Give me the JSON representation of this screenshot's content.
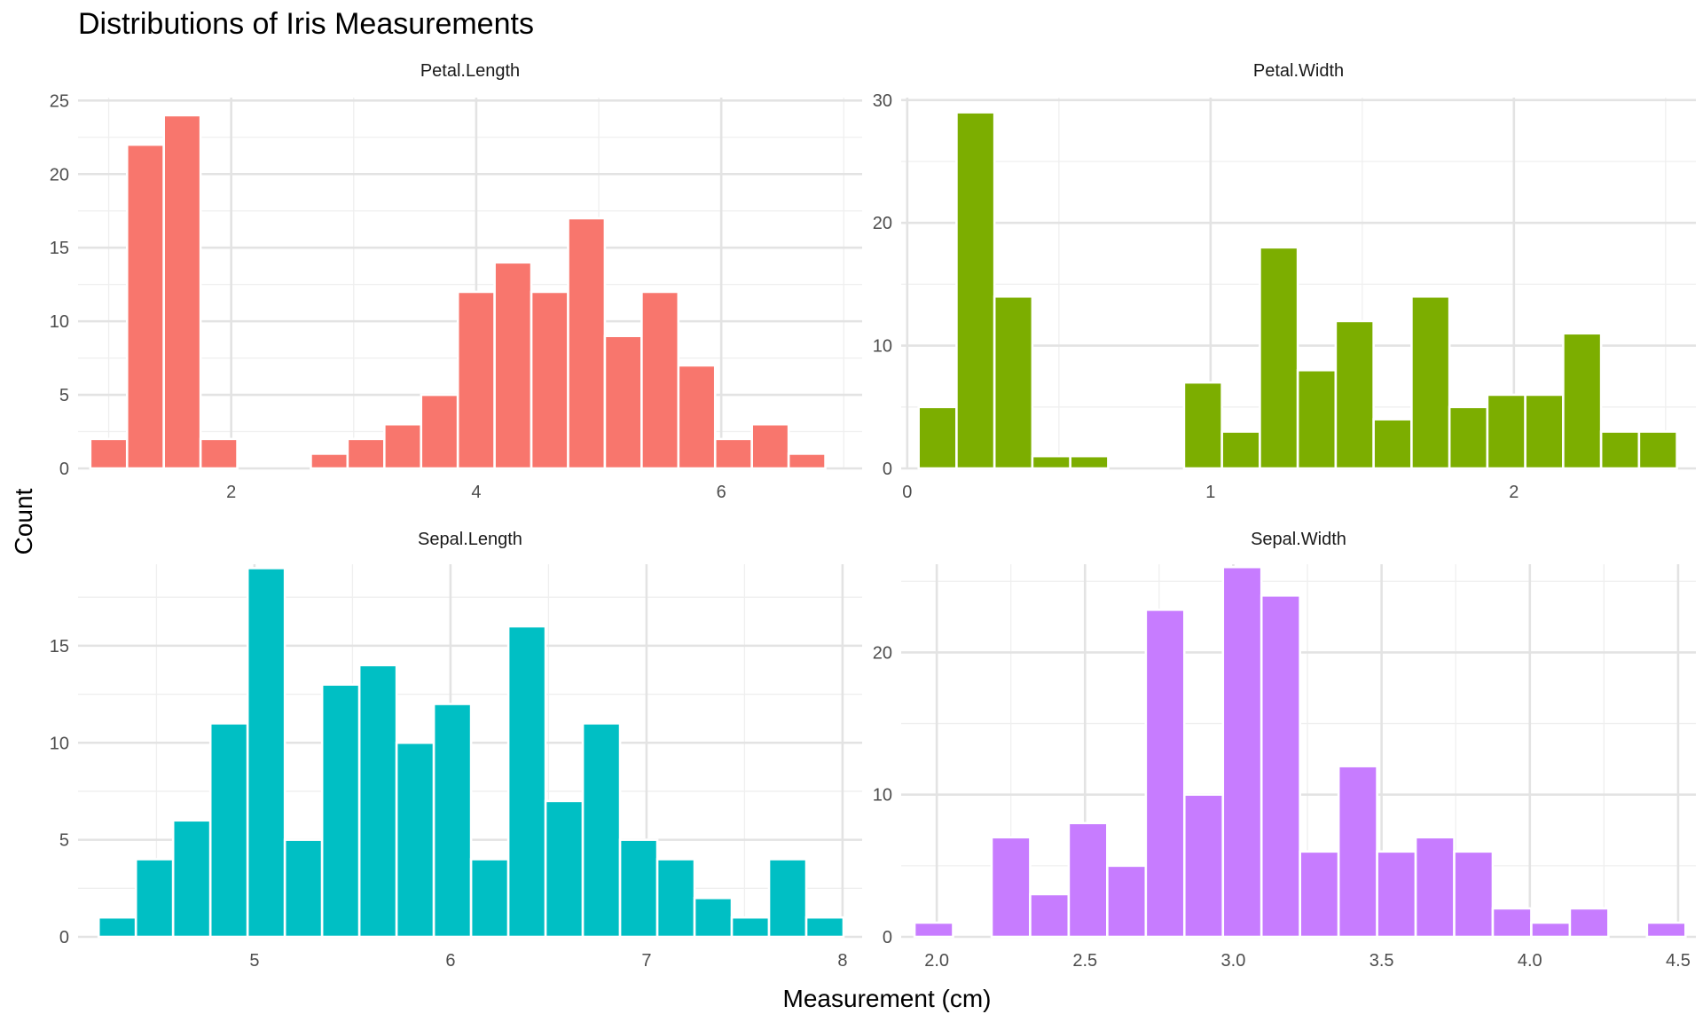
{
  "chart_data": {
    "title": "Distributions of Iris Measurements",
    "xlabel": "Measurement (cm)",
    "ylabel": "Count",
    "type": "bar",
    "facets": [
      {
        "name": "Petal.Length",
        "label": "Petal.Length",
        "color": "#F8766D",
        "bin_width": 0.3,
        "first_bin_center": 1.0,
        "values": [
          2,
          22,
          24,
          2,
          0,
          0,
          1,
          2,
          3,
          5,
          12,
          14,
          12,
          17,
          9,
          12,
          7,
          2,
          3,
          1
        ],
        "xlim": [
          0.75,
          7.15
        ],
        "ylim": [
          0,
          25.2
        ],
        "x_ticks": [
          2,
          4,
          6
        ],
        "x_tick_labels": [
          "2",
          "4",
          "6"
        ],
        "y_ticks": [
          0,
          5,
          10,
          15,
          20,
          25
        ],
        "y_tick_labels": [
          "0",
          "5",
          "10",
          "15",
          "20",
          "25"
        ]
      },
      {
        "name": "Petal.Width",
        "label": "Petal.Width",
        "color": "#7CAE00",
        "bin_width": 0.125,
        "first_bin_center": 0.1,
        "values": [
          5,
          29,
          14,
          1,
          1,
          0,
          0,
          7,
          3,
          18,
          8,
          12,
          4,
          14,
          5,
          6,
          6,
          11,
          3,
          3
        ],
        "xlim": [
          -0.02,
          2.6
        ],
        "ylim": [
          0,
          30.2
        ],
        "x_ticks": [
          0,
          1,
          2
        ],
        "x_tick_labels": [
          "0",
          "1",
          "2"
        ],
        "y_ticks": [
          0,
          10,
          20,
          30
        ],
        "y_tick_labels": [
          "0",
          "10",
          "20",
          "30"
        ]
      },
      {
        "name": "Sepal.Length",
        "label": "Sepal.Length",
        "color": "#00BFC4",
        "bin_width": 0.19,
        "first_bin_center": 4.3,
        "values": [
          1,
          4,
          6,
          11,
          19,
          5,
          13,
          14,
          10,
          12,
          4,
          16,
          7,
          11,
          5,
          4,
          2,
          1,
          4,
          1
        ],
        "xlim": [
          4.1,
          8.1
        ],
        "ylim": [
          0,
          19.2
        ],
        "x_ticks": [
          5,
          6,
          7,
          8
        ],
        "x_tick_labels": [
          "5",
          "6",
          "7",
          "8"
        ],
        "y_ticks": [
          0,
          5,
          10,
          15
        ],
        "y_tick_labels": [
          "0",
          "5",
          "10",
          "15"
        ]
      },
      {
        "name": "Sepal.Width",
        "label": "Sepal.Width",
        "color": "#C77CFF",
        "bin_width": 0.13,
        "first_bin_center": 1.99,
        "values": [
          1,
          0,
          7,
          3,
          8,
          5,
          23,
          10,
          26,
          24,
          6,
          12,
          6,
          7,
          6,
          2,
          1,
          2,
          0,
          1
        ],
        "xlim": [
          1.88,
          4.56
        ],
        "ylim": [
          0,
          26.2
        ],
        "x_ticks": [
          2.0,
          2.5,
          3.0,
          3.5,
          4.0,
          4.5
        ],
        "x_tick_labels": [
          "2.0",
          "2.5",
          "3.0",
          "3.5",
          "4.0",
          "4.5"
        ],
        "y_ticks": [
          0,
          10,
          20
        ],
        "y_tick_labels": [
          "0",
          "10",
          "20"
        ]
      }
    ]
  }
}
